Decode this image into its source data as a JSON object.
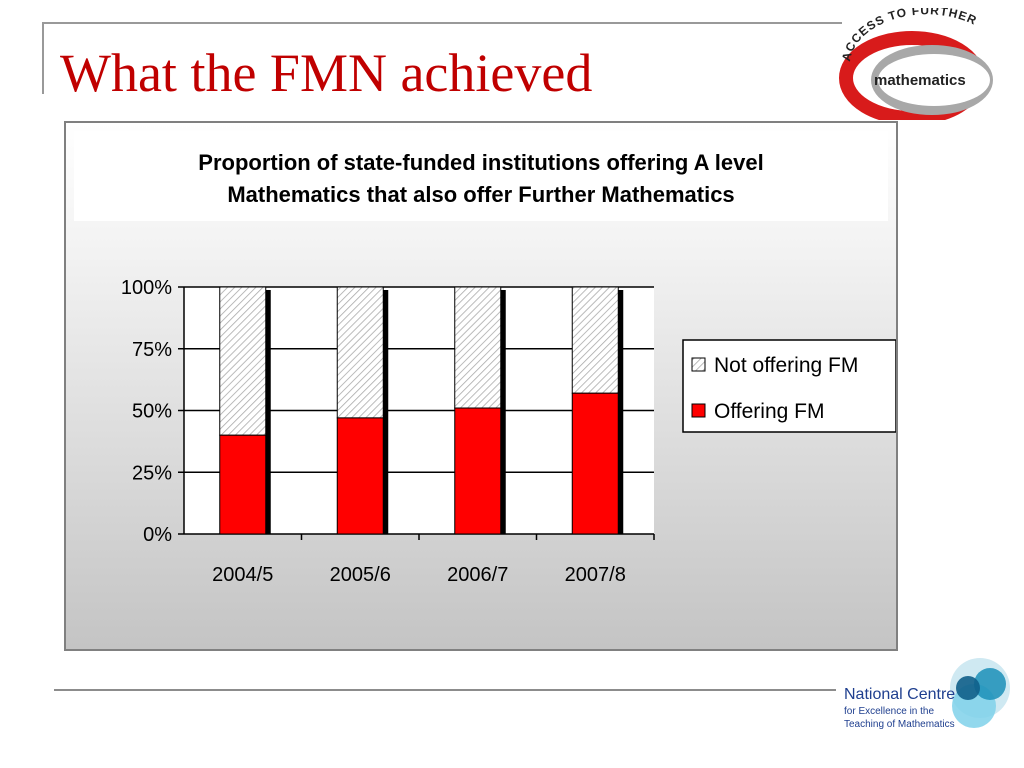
{
  "slide": {
    "title": "What the FMN achieved"
  },
  "logos": {
    "top_right": {
      "arc_text": "ACCESS TO FURTHER",
      "word": "mathematics"
    },
    "bottom_right": {
      "line1": "National Centre",
      "line2": "for Excellence in the",
      "line3": "Teaching of Mathematics"
    }
  },
  "chart_data": {
    "type": "bar",
    "stacked": true,
    "percent": true,
    "title": "Proportion of state-funded institutions offering A level Mathematics that also offer Further Mathematics",
    "title_lines": [
      "Proportion of state-funded institutions offering A level",
      "Mathematics that also offer Further Mathematics"
    ],
    "categories": [
      "2004/5",
      "2005/6",
      "2006/7",
      "2007/8"
    ],
    "series": [
      {
        "name": "Offering FM",
        "values": [
          40,
          47,
          51,
          57
        ],
        "color": "#ff0000"
      },
      {
        "name": "Not offering FM",
        "values": [
          60,
          53,
          49,
          43
        ],
        "color": "#ffffff",
        "pattern": "diagonal-hatch"
      }
    ],
    "yticks": [
      "0%",
      "25%",
      "50%",
      "75%",
      "100%"
    ],
    "ylim": [
      0,
      100
    ],
    "grid": true,
    "legend": {
      "position": "right",
      "entries": [
        "Not offering FM",
        "Offering FM"
      ]
    }
  }
}
